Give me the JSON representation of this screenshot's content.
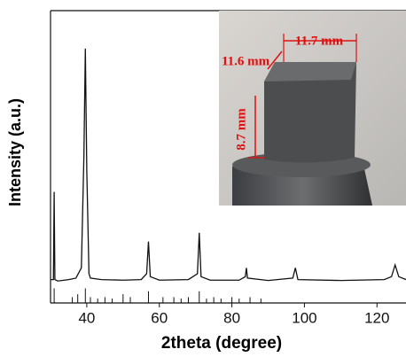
{
  "chart_data": {
    "type": "line",
    "xlabel": "2theta (degree)",
    "ylabel": "Intensity (a.u.)",
    "xlim": [
      30,
      128
    ],
    "ylim": [
      0,
      1
    ],
    "xticks": [
      40,
      60,
      80,
      100,
      120
    ],
    "color": "#111111",
    "x": [
      30,
      30.8,
      31,
      31.2,
      32,
      35,
      37,
      38.5,
      39.2,
      39.6,
      40,
      40.6,
      41,
      44,
      50,
      55,
      56.5,
      57,
      57.5,
      60,
      68,
      70.5,
      71,
      71.5,
      74,
      82,
      83.7,
      84,
      84.3,
      90,
      96.8,
      97.5,
      98.2,
      110,
      122,
      124,
      125,
      126,
      128
    ],
    "values": [
      0.08,
      0.08,
      0.38,
      0.08,
      0.075,
      0.08,
      0.085,
      0.12,
      0.5,
      0.87,
      0.45,
      0.1,
      0.085,
      0.08,
      0.078,
      0.08,
      0.1,
      0.21,
      0.09,
      0.078,
      0.08,
      0.1,
      0.24,
      0.09,
      0.078,
      0.078,
      0.09,
      0.12,
      0.085,
      0.077,
      0.085,
      0.12,
      0.08,
      0.077,
      0.08,
      0.09,
      0.13,
      0.09,
      0.08
    ],
    "reference": {
      "x": [
        31,
        36,
        37.5,
        39.6,
        41,
        43,
        45,
        47,
        50,
        52,
        57,
        61,
        64,
        66,
        68,
        71,
        73,
        75,
        77,
        80,
        82,
        85,
        88
      ],
      "values": [
        0.05,
        0.02,
        0.03,
        0.05,
        0.02,
        0.015,
        0.02,
        0.015,
        0.03,
        0.02,
        0.04,
        0.02,
        0.02,
        0.015,
        0.02,
        0.04,
        0.015,
        0.02,
        0.015,
        0.02,
        0.015,
        0.02,
        0.015
      ]
    },
    "annotations": [
      "11.7 mm",
      "11.6 mm",
      "8.7 mm"
    ]
  }
}
